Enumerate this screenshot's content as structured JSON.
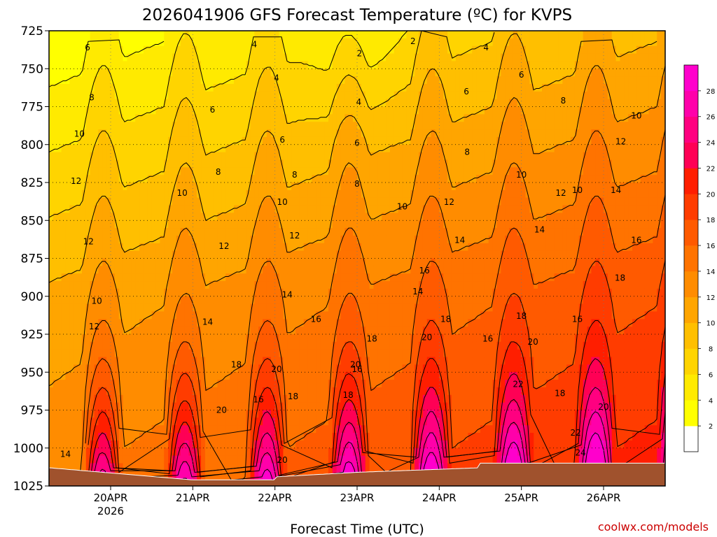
{
  "chart_data": {
    "type": "heatmap",
    "title": "2026041906 GFS Forecast Temperature (ºC) for KVPS",
    "xlabel": "Forecast Time (UTC)",
    "ylabel": "",
    "y_ticks": [
      "725",
      "750",
      "775",
      "800",
      "825",
      "850",
      "875",
      "900",
      "925",
      "950",
      "975",
      "1000",
      "1025"
    ],
    "y_values": [
      725,
      750,
      775,
      800,
      825,
      850,
      875,
      900,
      925,
      950,
      975,
      1000,
      1025
    ],
    "ylim": [
      725,
      1025
    ],
    "x_ticks": [
      {
        "label": "20APR",
        "sub": "2026",
        "value": 1
      },
      {
        "label": "21APR",
        "sub": "",
        "value": 2
      },
      {
        "label": "22APR",
        "sub": "",
        "value": 3
      },
      {
        "label": "23APR",
        "sub": "",
        "value": 4
      },
      {
        "label": "24APR",
        "sub": "",
        "value": 5
      },
      {
        "label": "25APR",
        "sub": "",
        "value": 6
      },
      {
        "label": "26APR",
        "sub": "",
        "value": 7
      }
    ],
    "xlim": [
      0.25,
      7.75
    ],
    "colorbar": {
      "levels": [
        2,
        4,
        6,
        8,
        10,
        12,
        14,
        16,
        18,
        20,
        22,
        24,
        26,
        28
      ],
      "colors": [
        "#ffffff",
        "#ffff00",
        "#ffea00",
        "#ffd400",
        "#ffbf00",
        "#ffa500",
        "#ff8c00",
        "#ff7300",
        "#ff5a00",
        "#ff3c00",
        "#ff1e00",
        "#ff0055",
        "#ff0080",
        "#ff00aa",
        "#ff00cc"
      ]
    },
    "contour_labels": [
      {
        "text": "6",
        "x": 0.72,
        "p": 736
      },
      {
        "text": "4",
        "x": 2.75,
        "p": 734
      },
      {
        "text": "2",
        "x": 4.03,
        "p": 740
      },
      {
        "text": "2",
        "x": 4.68,
        "p": 732
      },
      {
        "text": "4",
        "x": 5.57,
        "p": 736
      },
      {
        "text": "4",
        "x": 3.02,
        "p": 756
      },
      {
        "text": "6",
        "x": 6.0,
        "p": 754
      },
      {
        "text": "8",
        "x": 0.77,
        "p": 769
      },
      {
        "text": "6",
        "x": 2.24,
        "p": 777
      },
      {
        "text": "4",
        "x": 4.02,
        "p": 772
      },
      {
        "text": "6",
        "x": 5.33,
        "p": 765
      },
      {
        "text": "8",
        "x": 6.51,
        "p": 771
      },
      {
        "text": "10",
        "x": 0.62,
        "p": 793
      },
      {
        "text": "6",
        "x": 3.09,
        "p": 797
      },
      {
        "text": "6",
        "x": 4.0,
        "p": 799
      },
      {
        "text": "8",
        "x": 5.34,
        "p": 805
      },
      {
        "text": "10",
        "x": 7.4,
        "p": 781
      },
      {
        "text": "12",
        "x": 7.21,
        "p": 798
      },
      {
        "text": "8",
        "x": 2.31,
        "p": 818
      },
      {
        "text": "8",
        "x": 3.24,
        "p": 820
      },
      {
        "text": "8",
        "x": 4.0,
        "p": 826
      },
      {
        "text": "10",
        "x": 6.0,
        "p": 820
      },
      {
        "text": "10",
        "x": 6.68,
        "p": 830
      },
      {
        "text": "12",
        "x": 0.58,
        "p": 824
      },
      {
        "text": "10",
        "x": 1.87,
        "p": 832
      },
      {
        "text": "12",
        "x": 6.48,
        "p": 832
      },
      {
        "text": "14",
        "x": 7.15,
        "p": 830
      },
      {
        "text": "10",
        "x": 3.09,
        "p": 838
      },
      {
        "text": "10",
        "x": 4.55,
        "p": 841
      },
      {
        "text": "12",
        "x": 5.12,
        "p": 838
      },
      {
        "text": "12",
        "x": 0.73,
        "p": 864
      },
      {
        "text": "14",
        "x": 6.22,
        "p": 856
      },
      {
        "text": "12",
        "x": 2.38,
        "p": 867
      },
      {
        "text": "12",
        "x": 3.24,
        "p": 860
      },
      {
        "text": "14",
        "x": 5.25,
        "p": 863
      },
      {
        "text": "16",
        "x": 7.4,
        "p": 863
      },
      {
        "text": "16",
        "x": 4.82,
        "p": 883
      },
      {
        "text": "18",
        "x": 7.2,
        "p": 888
      },
      {
        "text": "14",
        "x": 2.18,
        "p": 917
      },
      {
        "text": "14",
        "x": 3.15,
        "p": 899
      },
      {
        "text": "14",
        "x": 4.74,
        "p": 897
      },
      {
        "text": "10",
        "x": 0.83,
        "p": 903
      },
      {
        "text": "16",
        "x": 3.5,
        "p": 915
      },
      {
        "text": "18",
        "x": 5.08,
        "p": 915
      },
      {
        "text": "18",
        "x": 6.0,
        "p": 913
      },
      {
        "text": "16",
        "x": 6.68,
        "p": 915
      },
      {
        "text": "12",
        "x": 0.8,
        "p": 920
      },
      {
        "text": "18",
        "x": 4.18,
        "p": 928
      },
      {
        "text": "20",
        "x": 4.85,
        "p": 927
      },
      {
        "text": "16",
        "x": 5.59,
        "p": 928
      },
      {
        "text": "20",
        "x": 6.14,
        "p": 930
      },
      {
        "text": "18",
        "x": 2.53,
        "p": 945
      },
      {
        "text": "20",
        "x": 3.02,
        "p": 948
      },
      {
        "text": "20",
        "x": 3.98,
        "p": 945
      },
      {
        "text": "16",
        "x": 4.0,
        "p": 948
      },
      {
        "text": "22",
        "x": 5.96,
        "p": 958
      },
      {
        "text": "16",
        "x": 2.8,
        "p": 968
      },
      {
        "text": "18",
        "x": 3.89,
        "p": 965
      },
      {
        "text": "18",
        "x": 3.22,
        "p": 966
      },
      {
        "text": "18",
        "x": 6.47,
        "p": 964
      },
      {
        "text": "20",
        "x": 7.0,
        "p": 973
      },
      {
        "text": "20",
        "x": 2.35,
        "p": 975
      },
      {
        "text": "22",
        "x": 6.66,
        "p": 990
      },
      {
        "text": "14",
        "x": 0.45,
        "p": 1004
      },
      {
        "text": "20",
        "x": 3.09,
        "p": 1008
      },
      {
        "text": "24",
        "x": 6.72,
        "p": 1003
      }
    ]
  },
  "credit": "coolwx.com/models",
  "colors": {
    "ground": "#a0522d",
    "credit": "#cc0000"
  }
}
